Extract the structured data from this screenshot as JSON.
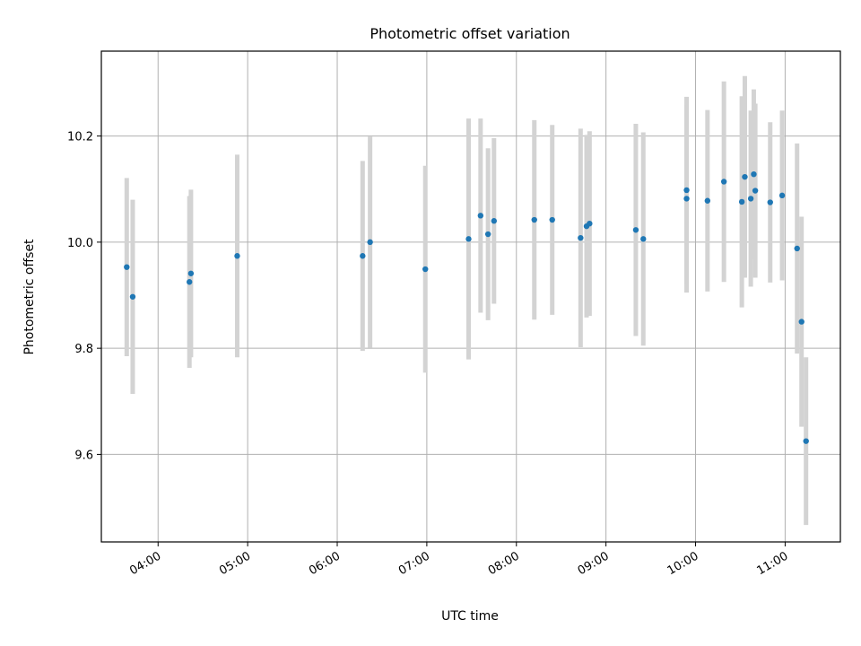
{
  "chart_data": {
    "type": "scatter",
    "title": "Photometric offset variation",
    "xlabel": "UTC time",
    "ylabel": "Photometric offset",
    "x_tick_labels": [
      "04:00",
      "05:00",
      "06:00",
      "07:00",
      "08:00",
      "09:00",
      "10:00",
      "11:00"
    ],
    "y_tick_labels": [
      "9.6",
      "9.8",
      "10.0",
      "10.2"
    ],
    "xlim": [
      "03:22",
      "11:37"
    ],
    "ylim": [
      9.435,
      10.36
    ],
    "grid": true,
    "marker_color": "#1f77b4",
    "errorbar_color": "#d3d3d3",
    "points": [
      {
        "x": "03:39",
        "y": 9.953,
        "err": 0.168
      },
      {
        "x": "03:43",
        "y": 9.897,
        "err": 0.183
      },
      {
        "x": "04:21",
        "y": 9.925,
        "err": 0.162
      },
      {
        "x": "04:22",
        "y": 9.941,
        "err": 0.158
      },
      {
        "x": "04:53",
        "y": 9.974,
        "err": 0.191
      },
      {
        "x": "06:17",
        "y": 9.974,
        "err": 0.179
      },
      {
        "x": "06:22",
        "y": 10.0,
        "err": 0.199
      },
      {
        "x": "06:59",
        "y": 9.949,
        "err": 0.195
      },
      {
        "x": "07:28",
        "y": 10.006,
        "err": 0.227
      },
      {
        "x": "07:36",
        "y": 10.05,
        "err": 0.183
      },
      {
        "x": "07:41",
        "y": 10.015,
        "err": 0.162
      },
      {
        "x": "07:45",
        "y": 10.04,
        "err": 0.156
      },
      {
        "x": "08:12",
        "y": 10.042,
        "err": 0.188
      },
      {
        "x": "08:24",
        "y": 10.042,
        "err": 0.179
      },
      {
        "x": "08:43",
        "y": 10.008,
        "err": 0.206
      },
      {
        "x": "08:47",
        "y": 10.03,
        "err": 0.172
      },
      {
        "x": "08:49",
        "y": 10.035,
        "err": 0.174
      },
      {
        "x": "09:20",
        "y": 10.023,
        "err": 0.2
      },
      {
        "x": "09:25",
        "y": 10.006,
        "err": 0.201
      },
      {
        "x": "09:54",
        "y": 10.098,
        "err": 0.176
      },
      {
        "x": "09:54",
        "y": 10.082,
        "err": 0.177
      },
      {
        "x": "10:08",
        "y": 10.078,
        "err": 0.171
      },
      {
        "x": "10:19",
        "y": 10.114,
        "err": 0.189
      },
      {
        "x": "10:31",
        "y": 10.076,
        "err": 0.199
      },
      {
        "x": "10:33",
        "y": 10.123,
        "err": 0.19
      },
      {
        "x": "10:37",
        "y": 10.082,
        "err": 0.166
      },
      {
        "x": "10:39",
        "y": 10.128,
        "err": 0.16
      },
      {
        "x": "10:40",
        "y": 10.097,
        "err": 0.164
      },
      {
        "x": "10:50",
        "y": 10.075,
        "err": 0.151
      },
      {
        "x": "10:58",
        "y": 10.088,
        "err": 0.16
      },
      {
        "x": "11:08",
        "y": 9.988,
        "err": 0.198
      },
      {
        "x": "11:11",
        "y": 9.85,
        "err": 0.198
      },
      {
        "x": "11:14",
        "y": 9.625,
        "err": 0.158
      }
    ]
  }
}
